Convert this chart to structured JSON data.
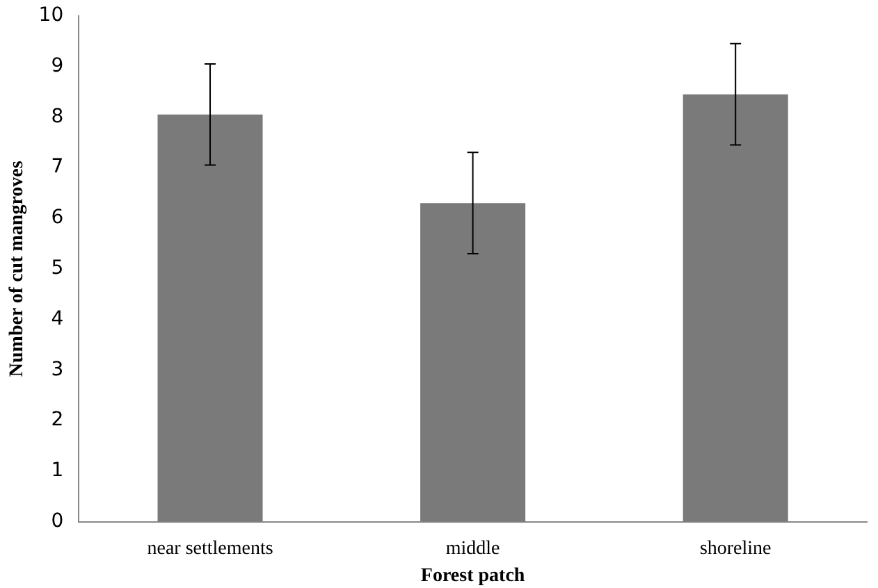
{
  "chart_data": {
    "type": "bar",
    "xlabel": "Forest patch",
    "ylabel": "Number of cut mangroves",
    "categories": [
      "near settlements",
      "middle",
      "shoreline"
    ],
    "values": [
      8.05,
      6.3,
      8.45
    ],
    "errors": [
      1,
      1,
      1
    ],
    "color": "#7a7a7a",
    "ylim": [
      0,
      10
    ],
    "yticks": [
      0,
      1,
      2,
      3,
      4,
      5,
      6,
      7,
      8,
      9,
      10
    ],
    "grid": false,
    "legend": false
  }
}
